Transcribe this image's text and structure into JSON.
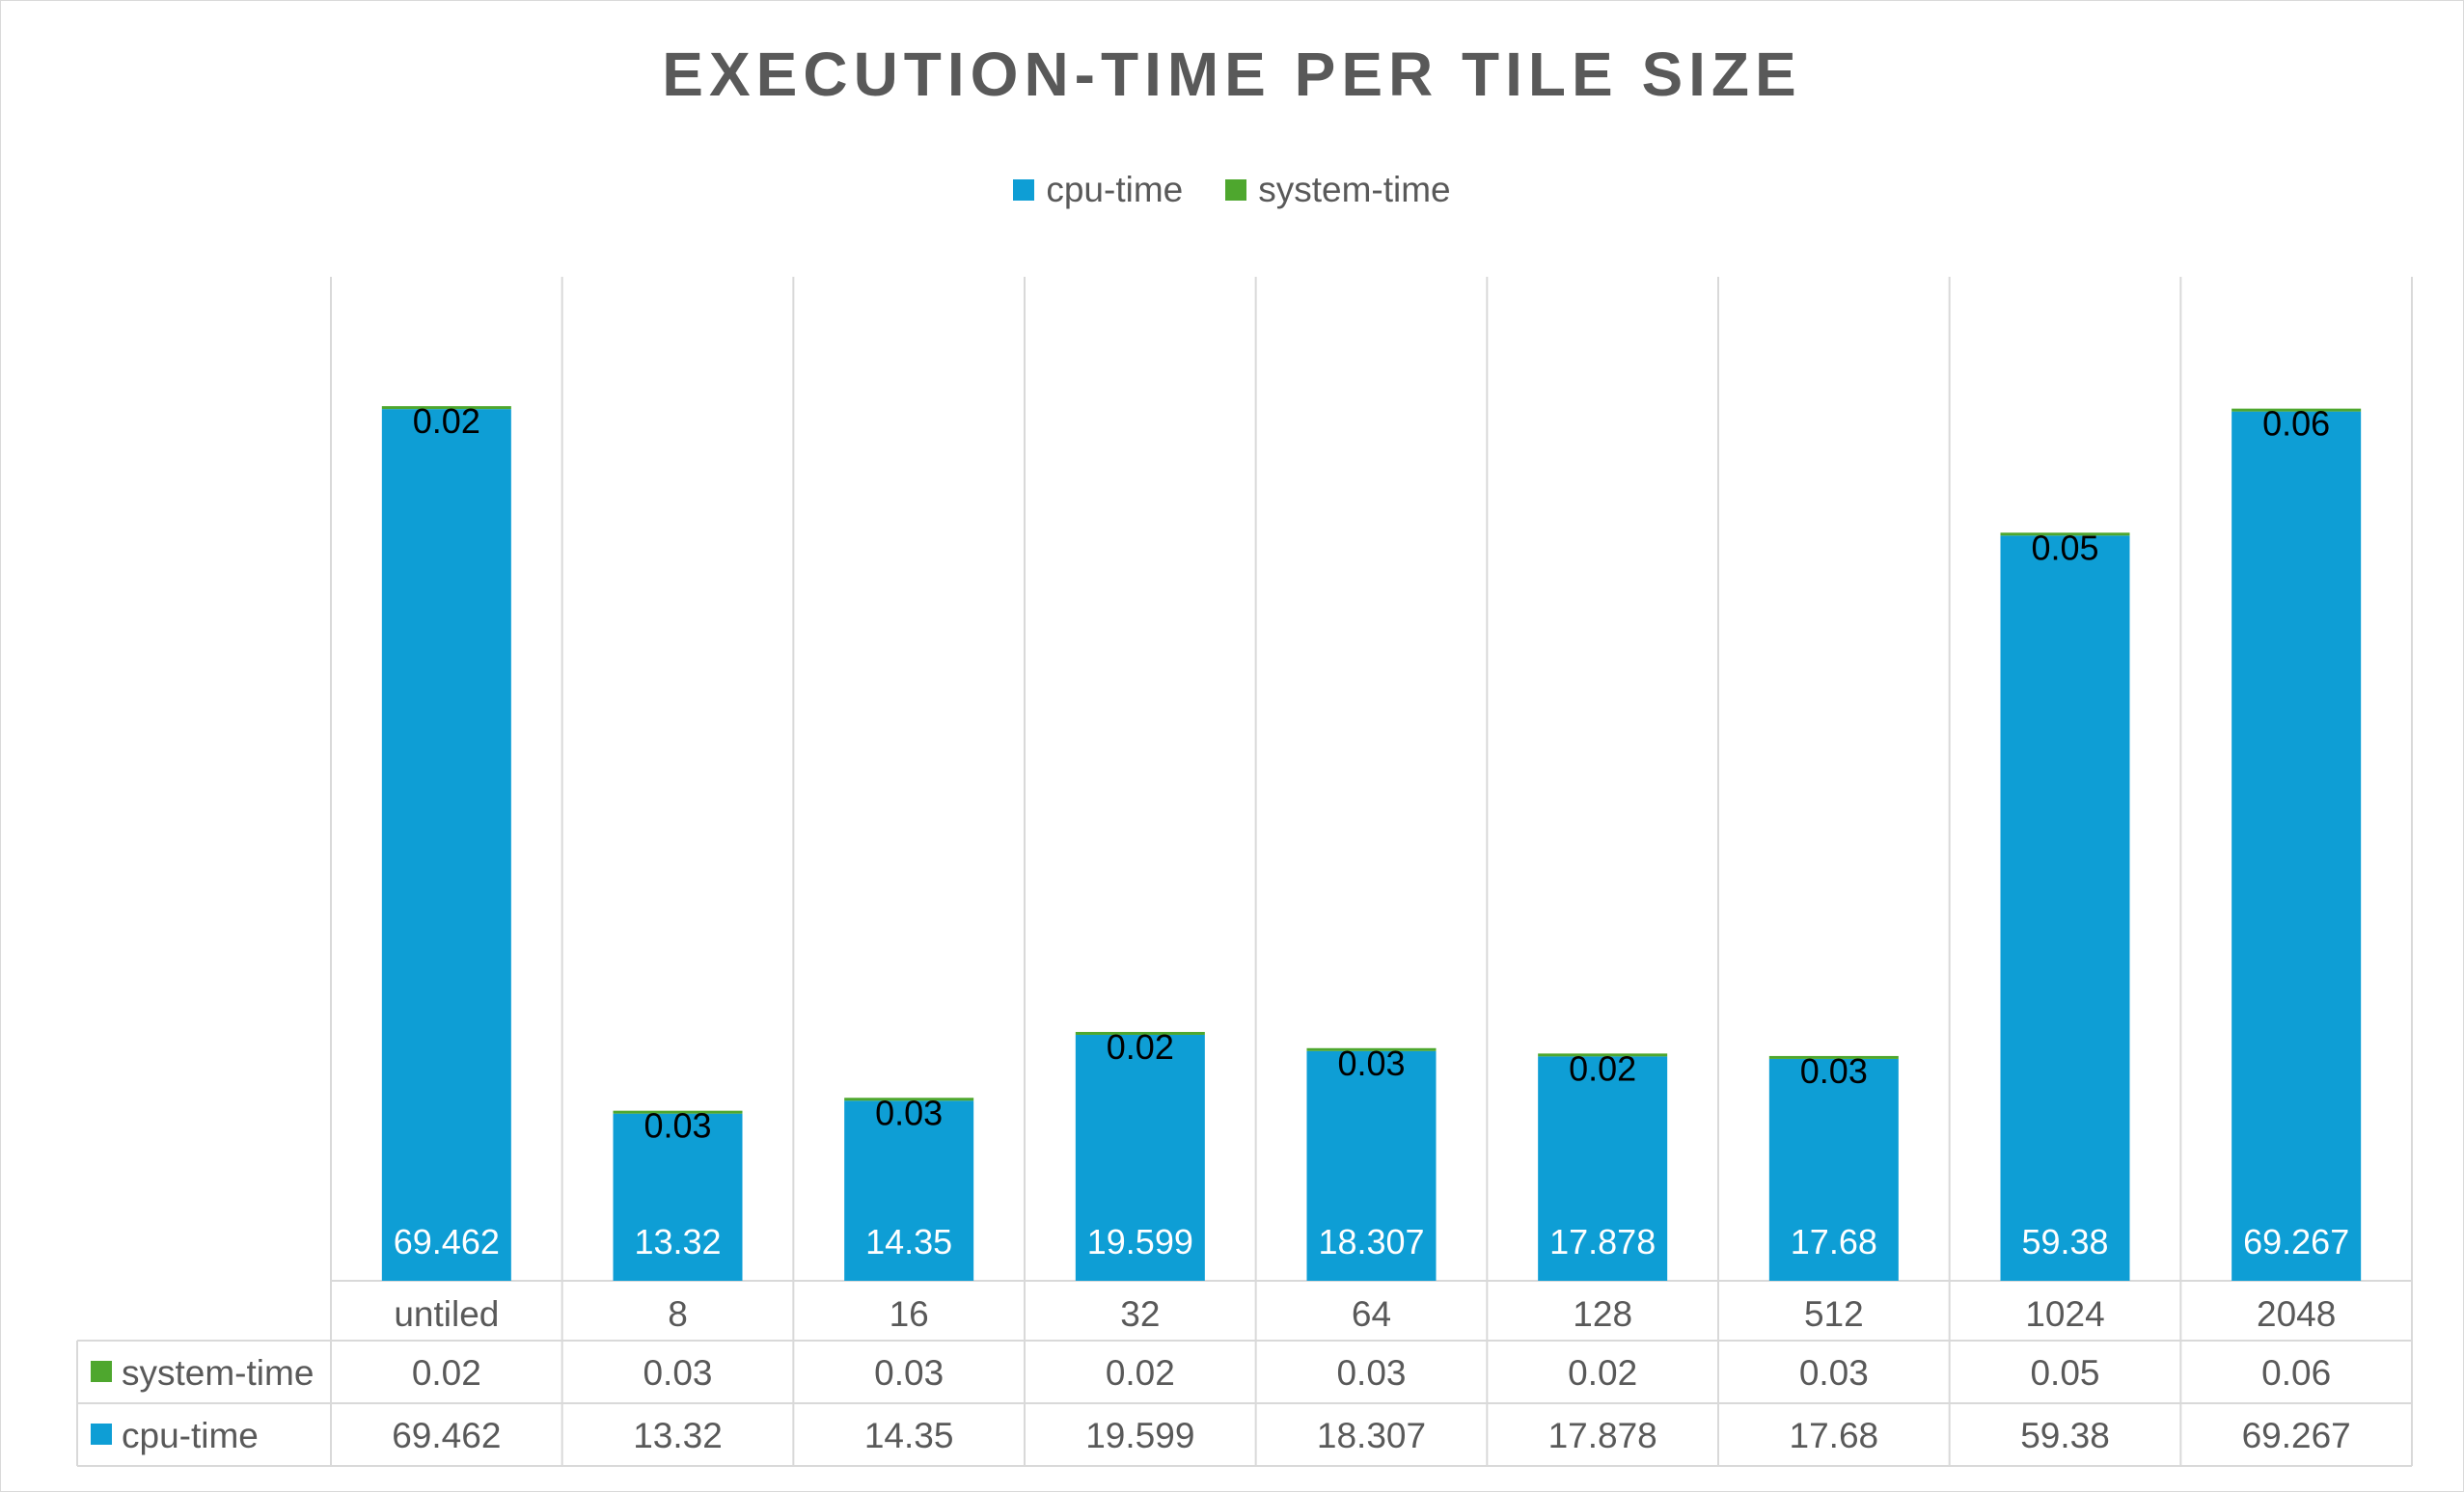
{
  "chart_data": {
    "type": "bar",
    "stacked": true,
    "title": "EXECUTION-TIME PER TILE SIZE",
    "categories": [
      "untiled",
      "8",
      "16",
      "32",
      "64",
      "128",
      "512",
      "1024",
      "2048"
    ],
    "series": [
      {
        "name": "cpu-time",
        "color": "#0e9ed5",
        "values": [
          69.462,
          13.32,
          14.35,
          19.599,
          18.307,
          17.878,
          17.68,
          59.38,
          69.267
        ],
        "labels": [
          "69.462",
          "13.32",
          "14.35",
          "19.599",
          "18.307",
          "17.878",
          "17.68",
          "59.38",
          "69.267"
        ]
      },
      {
        "name": "system-time",
        "color": "#4ea72e",
        "values": [
          0.02,
          0.03,
          0.03,
          0.02,
          0.03,
          0.02,
          0.03,
          0.05,
          0.06
        ],
        "labels": [
          "0.02",
          "0.03",
          "0.03",
          "0.02",
          "0.03",
          "0.02",
          "0.03",
          "0.05",
          "0.06"
        ]
      }
    ],
    "ylim": [
      0,
      80
    ],
    "legend_position": "top",
    "data_table": true,
    "data_table_rows": [
      "system-time",
      "cpu-time"
    ],
    "grid": "vertical category lines"
  }
}
